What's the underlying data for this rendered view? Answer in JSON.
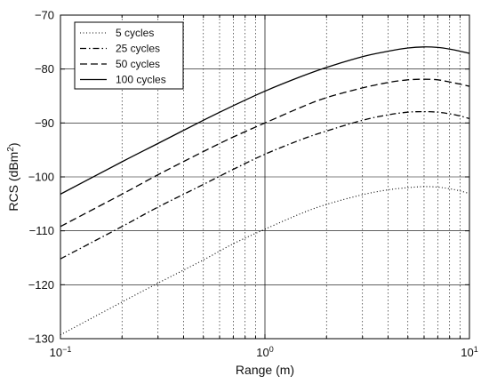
{
  "chart_data": {
    "type": "line",
    "title": "",
    "xlabel": "Range (m)",
    "ylabel_main": "RCS (dBm",
    "ylabel_sup": "2",
    "ylabel_close": ")",
    "xscale": "log",
    "xlim": [
      0.1,
      10
    ],
    "ylim": [
      -130,
      -70
    ],
    "x_ticks": [
      {
        "value": 0.1,
        "base": "10",
        "exp": "−1"
      },
      {
        "value": 1,
        "base": "10",
        "exp": "0"
      },
      {
        "value": 10,
        "base": "10",
        "exp": "1"
      }
    ],
    "y_ticks": [
      {
        "value": -130,
        "label": "−130"
      },
      {
        "value": -120,
        "label": "−120"
      },
      {
        "value": -110,
        "label": "−110"
      },
      {
        "value": -100,
        "label": "−100"
      },
      {
        "value": -90,
        "label": "−90"
      },
      {
        "value": -80,
        "label": "−80"
      },
      {
        "value": -70,
        "label": "−70"
      }
    ],
    "grid": "on",
    "legend_position": "top-left",
    "series": [
      {
        "name": "5 cycles",
        "dash": "dotted",
        "color": "#000000",
        "x": [
          0.1,
          0.2,
          0.3,
          0.5,
          0.7,
          1.0,
          1.5,
          2.0,
          3.0,
          4.0,
          5.0,
          6.0,
          7.0,
          8.0,
          9.0,
          10.0
        ],
        "y": [
          -129.3,
          -123.2,
          -119.7,
          -115.4,
          -112.4,
          -109.7,
          -106.8,
          -105.1,
          -103.3,
          -102.4,
          -102.0,
          -101.8,
          -101.9,
          -102.2,
          -102.6,
          -103.1
        ]
      },
      {
        "name": "25 cycles",
        "dash": "dashdot",
        "color": "#000000",
        "x": [
          0.1,
          0.2,
          0.3,
          0.5,
          0.7,
          1.0,
          1.5,
          2.0,
          3.0,
          4.0,
          5.0,
          6.0,
          7.0,
          8.0,
          9.0,
          10.0
        ],
        "y": [
          -115.2,
          -109.2,
          -105.6,
          -101.4,
          -98.6,
          -95.8,
          -93.1,
          -91.5,
          -89.5,
          -88.5,
          -88.0,
          -87.9,
          -88.0,
          -88.3,
          -88.7,
          -89.2
        ]
      },
      {
        "name": "50 cycles",
        "dash": "dashed",
        "color": "#000000",
        "x": [
          0.1,
          0.2,
          0.3,
          0.5,
          0.7,
          1.0,
          1.5,
          2.0,
          3.0,
          4.0,
          5.0,
          6.0,
          7.0,
          8.0,
          9.0,
          10.0
        ],
        "y": [
          -109.2,
          -103.2,
          -99.6,
          -95.3,
          -92.6,
          -90.0,
          -87.1,
          -85.3,
          -83.5,
          -82.5,
          -82.0,
          -81.9,
          -82.0,
          -82.4,
          -82.8,
          -83.2
        ]
      },
      {
        "name": "100 cycles",
        "dash": "solid",
        "color": "#000000",
        "x": [
          0.1,
          0.2,
          0.3,
          0.5,
          0.7,
          1.0,
          1.5,
          2.0,
          3.0,
          4.0,
          5.0,
          6.0,
          7.0,
          8.0,
          9.0,
          10.0
        ],
        "y": [
          -103.2,
          -97.2,
          -93.8,
          -89.5,
          -86.8,
          -84.1,
          -81.4,
          -79.7,
          -77.7,
          -76.7,
          -76.1,
          -75.9,
          -76.0,
          -76.3,
          -76.7,
          -77.1
        ]
      }
    ]
  }
}
